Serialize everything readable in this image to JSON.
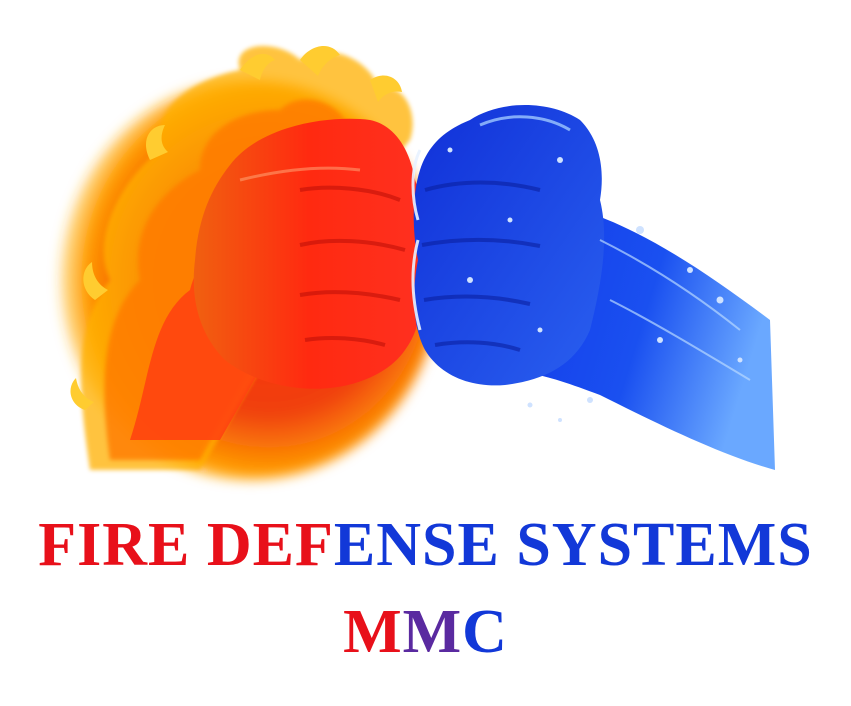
{
  "logo": {
    "line1_part1": "FIRE DEF",
    "line1_part2": "ENSE SYSTEMS",
    "line2_part1": "M",
    "line2_part2": "M",
    "line2_part3": "C"
  },
  "colors": {
    "fire_text": "#e8101a",
    "water_text": "#1238d8",
    "blend_text": "#5a2aa0",
    "fire_core": "#e8200f",
    "fire_flame": "#ffb000",
    "water_core": "#1240e0",
    "water_light": "#7fb6ff"
  },
  "icons": {
    "left": "flaming-fist-icon",
    "right": "water-fist-icon"
  }
}
